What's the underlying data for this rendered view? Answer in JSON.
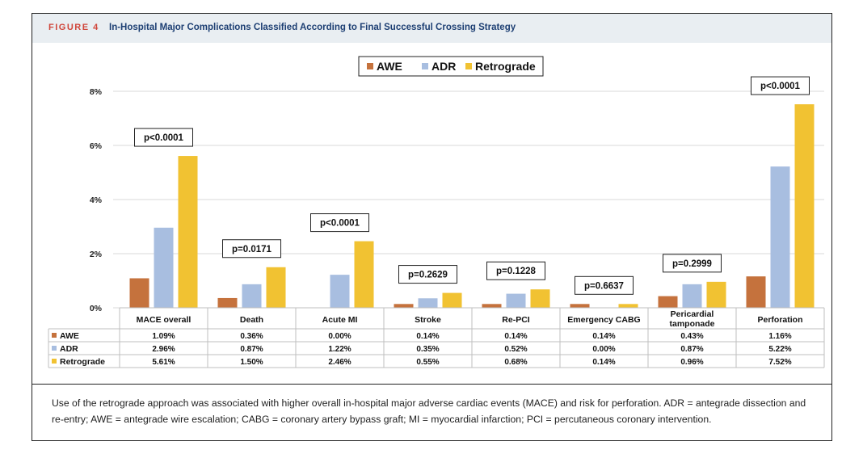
{
  "figure": {
    "label": "FIGURE 4",
    "title": "In-Hospital Major Complications Classified According to Final Successful Crossing Strategy",
    "caption": "Use of the retrograde approach was associated with higher overall in-hospital major adverse cardiac events (MACE) and risk for perforation. ADR = antegrade dissection and re-entry; AWE = antegrade wire escalation; CABG = coronary artery bypass graft; MI = myocardial infarction; PCI = percutaneous coronary intervention."
  },
  "chart_data": {
    "type": "bar",
    "categories": [
      "MACE overall",
      "Death",
      "Acute MI",
      "Stroke",
      "Re-PCI",
      "Emergency CABG",
      "Pericardial tamponade",
      "Perforation"
    ],
    "series": [
      {
        "name": "AWE",
        "color": "#c5723d",
        "values": [
          1.09,
          0.36,
          0.0,
          0.14,
          0.14,
          0.14,
          0.43,
          1.16
        ],
        "labels": [
          "1.09%",
          "0.36%",
          "0.00%",
          "0.14%",
          "0.14%",
          "0.14%",
          "0.43%",
          "1.16%"
        ]
      },
      {
        "name": "ADR",
        "color": "#a8bee0",
        "values": [
          2.96,
          0.87,
          1.22,
          0.35,
          0.52,
          0.0,
          0.87,
          5.22
        ],
        "labels": [
          "2.96%",
          "0.87%",
          "1.22%",
          "0.35%",
          "0.52%",
          "0.00%",
          "0.87%",
          "5.22%"
        ]
      },
      {
        "name": "Retrograde",
        "color": "#f1c232",
        "values": [
          5.61,
          1.5,
          2.46,
          0.55,
          0.68,
          0.14,
          0.96,
          7.52
        ],
        "labels": [
          "5.61%",
          "1.50%",
          "2.46%",
          "0.55%",
          "0.68%",
          "0.14%",
          "0.96%",
          "7.52%"
        ]
      }
    ],
    "p_values": [
      "p<0.0001",
      "p=0.0171",
      "p<0.0001",
      "p=0.2629",
      "p=0.1228",
      "p=0.6637",
      "p=0.2999",
      "p<0.0001"
    ],
    "yticks": [
      "0%",
      "2%",
      "4%",
      "6%",
      "8%"
    ],
    "ytick_values": [
      0,
      2,
      4,
      6,
      8
    ],
    "ylim": [
      0,
      8
    ],
    "legend_position": "top-center",
    "grid": true
  }
}
